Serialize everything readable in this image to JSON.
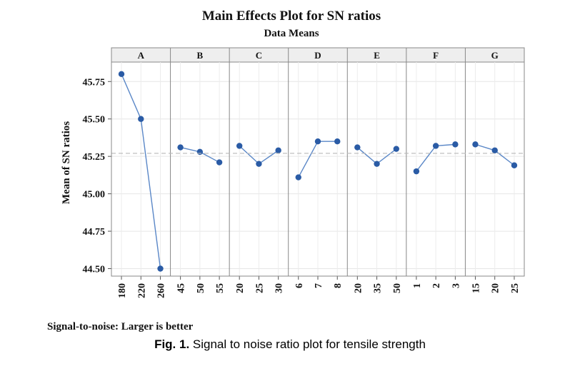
{
  "chart_data": {
    "type": "line",
    "title": "Main Effects Plot for SN ratios",
    "subtitle": "Data Means",
    "ylabel": "Mean of SN ratios",
    "ylim": [
      44.45,
      45.88
    ],
    "yticks": [
      "45.75",
      "45.50",
      "45.25",
      "45.00",
      "44.75",
      "44.50"
    ],
    "reference_line": 45.27,
    "marker_color": "#2a5ba5",
    "line_color": "#5a87c7",
    "panels": [
      {
        "label": "A",
        "levels": [
          "180",
          "220",
          "260"
        ],
        "values": [
          45.8,
          45.5,
          44.5
        ]
      },
      {
        "label": "B",
        "levels": [
          "45",
          "50",
          "55"
        ],
        "values": [
          45.31,
          45.28,
          45.21
        ]
      },
      {
        "label": "C",
        "levels": [
          "20",
          "25",
          "30"
        ],
        "values": [
          45.32,
          45.2,
          45.29
        ]
      },
      {
        "label": "D",
        "levels": [
          "6",
          "7",
          "8"
        ],
        "values": [
          45.11,
          45.35,
          45.35
        ]
      },
      {
        "label": "E",
        "levels": [
          "20",
          "35",
          "50"
        ],
        "values": [
          45.31,
          45.2,
          45.3
        ]
      },
      {
        "label": "F",
        "levels": [
          "1",
          "2",
          "3"
        ],
        "values": [
          45.15,
          45.32,
          45.33
        ]
      },
      {
        "label": "G",
        "levels": [
          "15",
          "20",
          "25"
        ],
        "values": [
          45.33,
          45.29,
          45.19
        ]
      }
    ],
    "grid": true
  },
  "footnote": "Signal-to-noise: Larger is better",
  "caption": {
    "label": "Fig. 1.",
    "text": " Signal to noise ratio plot for tensile strength"
  }
}
